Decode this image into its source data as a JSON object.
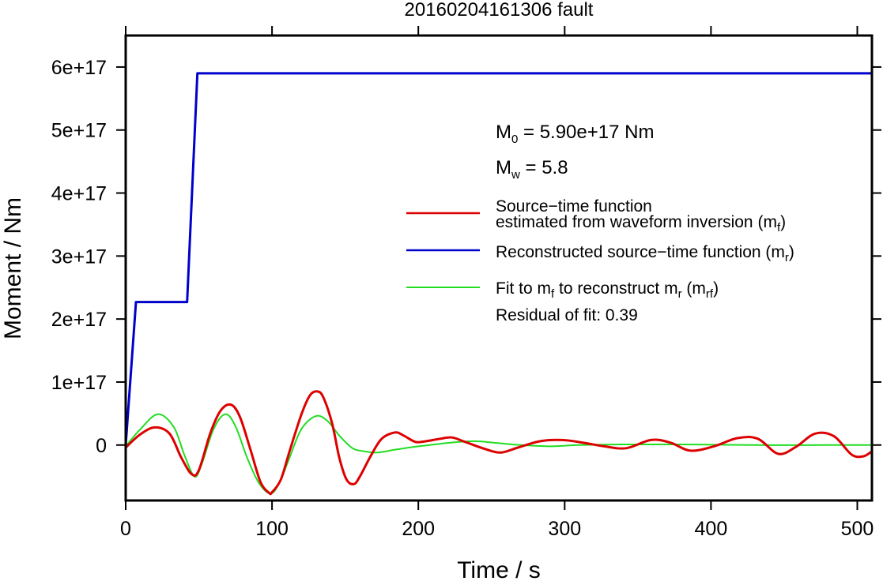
{
  "chart_data": {
    "type": "line",
    "title": "20160204161306 fault",
    "xlabel": "Time / s",
    "ylabel": "Moment / Nm",
    "xlim": [
      0,
      510
    ],
    "ylim": [
      -8.8e+16,
      6.5e+17
    ],
    "xticks": [
      0,
      100,
      200,
      300,
      400,
      500
    ],
    "xtick_labels": [
      "0",
      "100",
      "200",
      "300",
      "400",
      "500"
    ],
    "yticks": [
      0,
      1e+17,
      2e+17,
      3e+17,
      4e+17,
      5e+17,
      6e+17
    ],
    "ytick_labels": [
      "0",
      "1e+17",
      "2e+17",
      "3e+17",
      "4e+17",
      "5e+17",
      "6e+17"
    ],
    "grid": false,
    "legend_position": "right",
    "annotations": {
      "m0": {
        "base": "M",
        "sub": "0",
        "rest": " = 5.90e+17 Nm"
      },
      "mw": {
        "base": "M",
        "sub": "w",
        "rest": " = 5.8"
      },
      "residual": "Residual of fit: 0.39"
    },
    "series": [
      {
        "name": "Source−time function estimated from waveform inversion (mf)",
        "legend_lines": [
          "Source−time function",
          "estimated from waveform inversion (m",
          "f",
          ")"
        ],
        "color": "#dd0000",
        "x": [
          0,
          10,
          20,
          30,
          38,
          45,
          50,
          58,
          65,
          72,
          78,
          85,
          92,
          98,
          100,
          106,
          112,
          120,
          126,
          131,
          135,
          141,
          146,
          151,
          156,
          160,
          168,
          175,
          184,
          190,
          198,
          205,
          215,
          223,
          232,
          244,
          256,
          268,
          283,
          298,
          312,
          327,
          342,
          359,
          372,
          386,
          402,
          418,
          432,
          446,
          458,
          471,
          484,
          496,
          504,
          510
        ],
        "y": [
          -4000000000000000.0,
          1.7e+16,
          2.8e+16,
          1.8e+16,
          -2e+16,
          -4.6e+16,
          -4e+16,
          2e+16,
          5.5e+16,
          6.4e+16,
          4.5e+16,
          -5000000000000000.0,
          -5.8e+16,
          -7.6e+16,
          -7.5e+16,
          -5.5e+16,
          -1e+16,
          4.8e+16,
          7.9e+16,
          8.5e+16,
          7.6e+16,
          3.5e+16,
          -2e+16,
          -5.5e+16,
          -6.2e+16,
          -5e+16,
          -1.5e+16,
          1e+16,
          2e+16,
          1.5e+16,
          5000000000000000.0,
          6000000000000000.0,
          1e+16,
          1.2e+16,
          5000000000000000.0,
          -5000000000000000.0,
          -1.2e+16,
          -4000000000000000.0,
          6000000000000000.0,
          8000000000000000.0,
          4000000000000000.0,
          -2000000000000000.0,
          -5000000000000000.0,
          8000000000000000.0,
          4000000000000000.0,
          -9000000000000000.0,
          -2000000000000000.0,
          1.1e+16,
          1e+16,
          -1.4e+16,
          -3000000000000000.0,
          1.8e+16,
          1.4e+16,
          -1.5e+16,
          -1.8e+16,
          -1e+16
        ]
      },
      {
        "name": "Reconstructed source−time function (mr)",
        "legend_lines": [
          "Reconstructed source−time function (m",
          "r",
          ")"
        ],
        "color": "#0000cc",
        "x": [
          0,
          7,
          42,
          49,
          510
        ],
        "y": [
          0,
          2.27e+17,
          2.27e+17,
          5.9e+17,
          5.9e+17
        ]
      },
      {
        "name": "Fit to mf to reconstruct mr (mrf)",
        "legend_lines": [
          "Fit to m",
          "f",
          " to reconstruct m",
          "r",
          " (m",
          "rf",
          ")"
        ],
        "color": "#22dd22",
        "x": [
          0,
          10,
          22,
          33,
          40,
          47,
          52,
          60,
          68,
          75,
          83,
          91,
          99,
          105,
          112,
          120,
          130,
          138,
          146,
          155,
          163,
          172,
          185,
          200,
          215,
          228,
          240,
          255,
          270,
          290,
          310,
          340,
          380,
          430,
          480,
          510
        ],
        "y": [
          -2000000000000000.0,
          2.5e+16,
          4.9e+16,
          2.8e+16,
          -1.5e+16,
          -5e+16,
          -3e+16,
          2.5e+16,
          4.9e+16,
          3e+16,
          -2e+16,
          -6e+16,
          -7.7e+16,
          -6e+16,
          -2e+16,
          2.5e+16,
          4.6e+16,
          3.8e+16,
          1.5e+16,
          -5000000000000000.0,
          -1e+16,
          -1.2e+16,
          -7000000000000000.0,
          -2000000000000000.0,
          2000000000000000.0,
          5000000000000000.0,
          6000000000000000.0,
          3000000000000000.0,
          0,
          -2000000000000000.0,
          0,
          1000000000000000.0,
          1000000000000000.0,
          0,
          0,
          0
        ]
      }
    ]
  }
}
